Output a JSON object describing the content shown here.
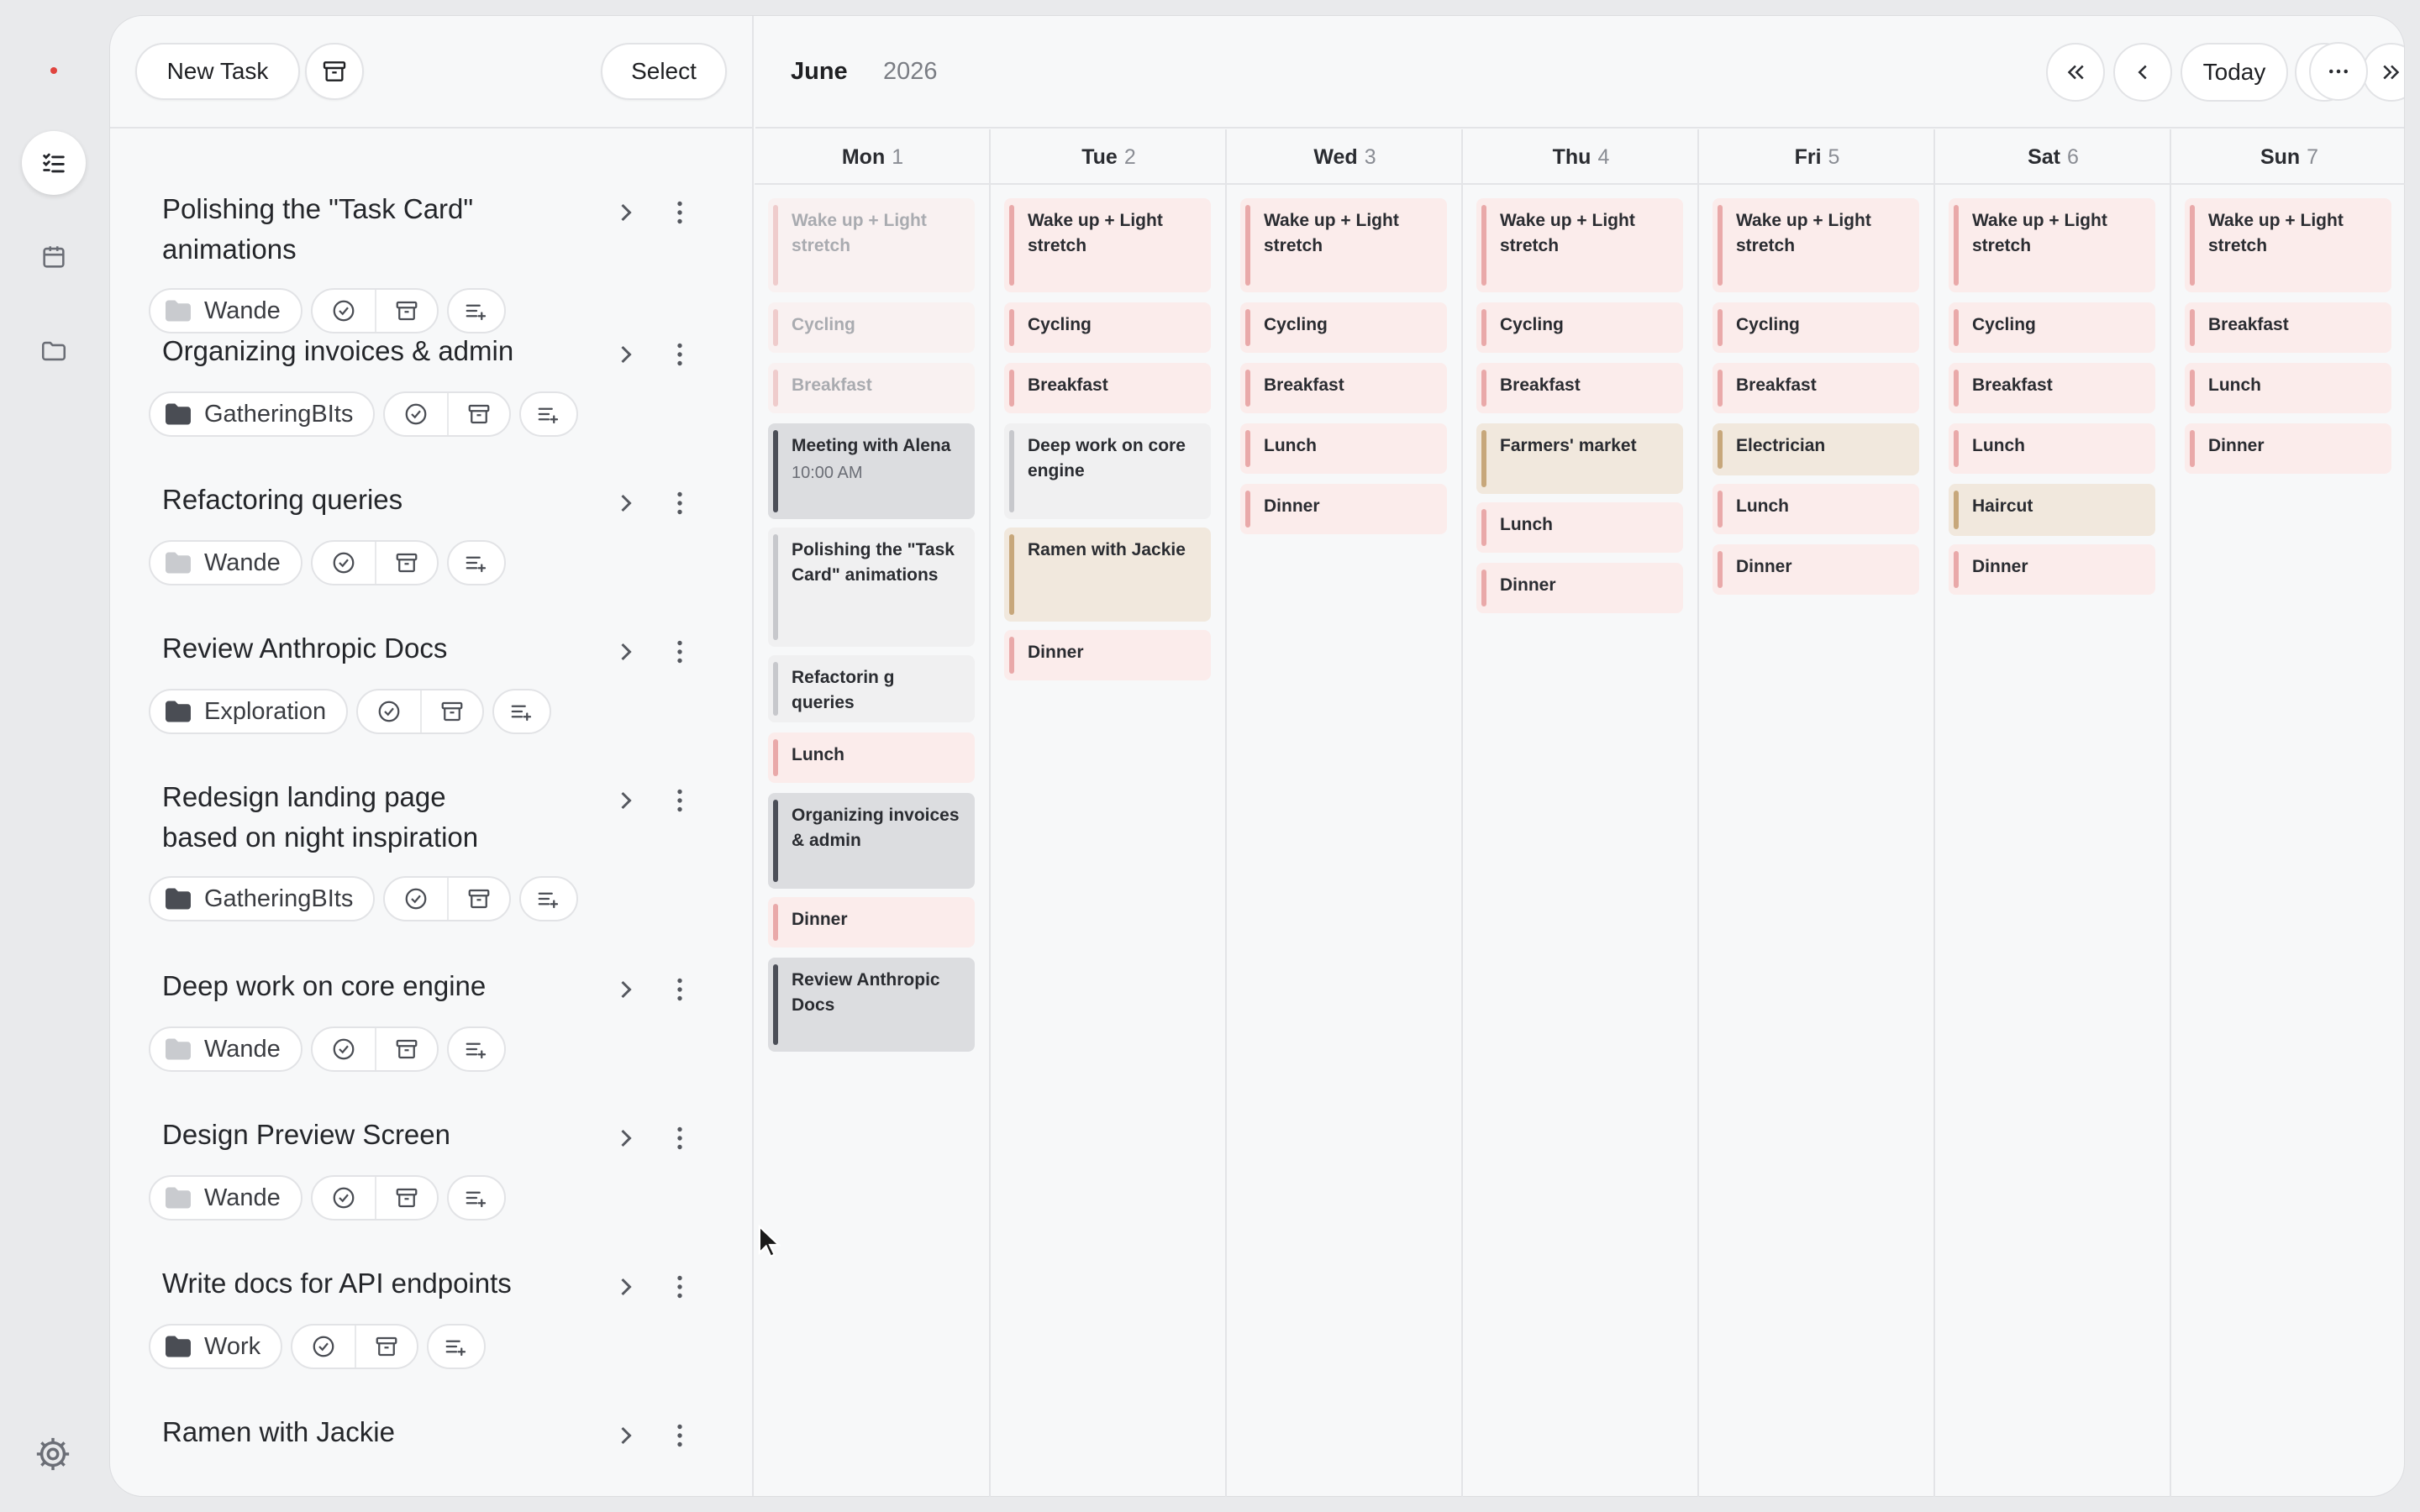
{
  "header": {
    "new_task": "New Task",
    "select": "Select"
  },
  "calendar": {
    "month": "June",
    "year": "2026",
    "today_label": "Today",
    "days": [
      {
        "name": "Mon",
        "num": "1"
      },
      {
        "name": "Tue",
        "num": "2"
      },
      {
        "name": "Wed",
        "num": "3"
      },
      {
        "name": "Thu",
        "num": "4"
      },
      {
        "name": "Fri",
        "num": "5"
      },
      {
        "name": "Sat",
        "num": "6"
      },
      {
        "name": "Sun",
        "num": "7"
      }
    ],
    "events": {
      "mon": [
        "Wake up + Light stretch",
        "Cycling",
        "Breakfast",
        "Meeting with Alena",
        "10:00 AM",
        "Polishing the \"Task Card\" animations",
        "Refactorin g queries",
        "Lunch",
        "Organizing invoices & admin",
        "Dinner",
        "Review Anthropic Docs"
      ],
      "tue": [
        "Wake up + Light stretch",
        "Cycling",
        "Breakfast",
        "Deep work on core engine",
        "Ramen with Jackie",
        "Dinner"
      ],
      "wed": [
        "Wake up + Light stretch",
        "Cycling",
        "Breakfast",
        "Lunch",
        "Dinner"
      ],
      "thu": [
        "Wake up + Light stretch",
        "Cycling",
        "Breakfast",
        "Farmers' market",
        "Lunch",
        "Dinner"
      ],
      "fri": [
        "Wake up + Light stretch",
        "Cycling",
        "Breakfast",
        "Electrician",
        "Lunch",
        "Dinner"
      ],
      "sat": [
        "Wake up + Light stretch",
        "Cycling",
        "Breakfast",
        "Lunch",
        "Haircut",
        "Dinner"
      ],
      "sun": [
        "Wake up + Light stretch",
        "Breakfast",
        "Lunch",
        "Dinner"
      ]
    }
  },
  "tasks": [
    {
      "title": "Polishing the \"Task Card\" animations",
      "project": "Wande"
    },
    {
      "title": "Organizing invoices & admin",
      "project": "GatheringBIts"
    },
    {
      "title": "Refactoring queries",
      "project": "Wande"
    },
    {
      "title": "Review Anthropic Docs",
      "project": "Exploration"
    },
    {
      "title": "Redesign landing page based on night inspiration",
      "project": "GatheringBIts"
    },
    {
      "title": "Deep work on core engine",
      "project": "Wande"
    },
    {
      "title": "Design Preview Screen",
      "project": "Wande"
    },
    {
      "title": "Write docs for API endpoints",
      "project": "Work"
    },
    {
      "title": "Ramen with Jackie",
      "project": ""
    }
  ],
  "colors": {
    "accent_dot": "#e0443e",
    "event_pink": "#fbeceb",
    "event_tan": "#f1e8dd",
    "event_gray": "#dcdde0"
  }
}
